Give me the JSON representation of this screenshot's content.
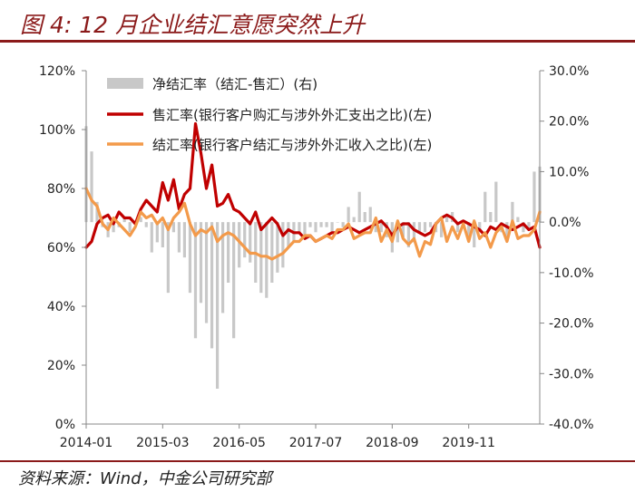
{
  "figure": {
    "title": "图 4: 12 月企业结汇意愿突然上升",
    "source": "资料来源：Wind，中金公司研究部"
  },
  "chart_data": {
    "type": "line",
    "y_left": {
      "ylim": [
        0,
        120
      ],
      "ticks": [
        "0%",
        "20%",
        "40%",
        "60%",
        "80%",
        "100%",
        "120%"
      ]
    },
    "y_right": {
      "ylim": [
        -40,
        30
      ],
      "ticks": [
        "-40.0%",
        "-30.0%",
        "-20.0%",
        "-10.0%",
        "0.0%",
        "10.0%",
        "20.0%",
        "30.0%"
      ]
    },
    "x_start": "2014-01",
    "x_tick_labels": [
      "2014-01",
      "2015-03",
      "2016-05",
      "2017-07",
      "2018-09",
      "2019-11"
    ],
    "x": [
      "2014-01",
      "2014-02",
      "2014-03",
      "2014-04",
      "2014-05",
      "2014-06",
      "2014-07",
      "2014-08",
      "2014-09",
      "2014-10",
      "2014-11",
      "2014-12",
      "2015-01",
      "2015-02",
      "2015-03",
      "2015-04",
      "2015-05",
      "2015-06",
      "2015-07",
      "2015-08",
      "2015-09",
      "2015-10",
      "2015-11",
      "2015-12",
      "2016-01",
      "2016-02",
      "2016-03",
      "2016-04",
      "2016-05",
      "2016-06",
      "2016-07",
      "2016-08",
      "2016-09",
      "2016-10",
      "2016-11",
      "2016-12",
      "2017-01",
      "2017-02",
      "2017-03",
      "2017-04",
      "2017-05",
      "2017-06",
      "2017-07",
      "2017-08",
      "2017-09",
      "2017-10",
      "2017-11",
      "2017-12",
      "2018-01",
      "2018-02",
      "2018-03",
      "2018-04",
      "2018-05",
      "2018-06",
      "2018-07",
      "2018-08",
      "2018-09",
      "2018-10",
      "2018-11",
      "2018-12",
      "2019-01",
      "2019-02",
      "2019-03",
      "2019-04",
      "2019-05",
      "2019-06",
      "2019-07",
      "2019-08",
      "2019-09",
      "2019-10",
      "2019-11",
      "2019-12",
      "2020-01",
      "2020-02",
      "2020-03",
      "2020-04",
      "2020-05",
      "2020-06",
      "2020-07",
      "2020-08",
      "2020-09",
      "2020-10",
      "2020-11",
      "2020-12"
    ],
    "legend_placement": "top",
    "grid": false,
    "series": [
      {
        "name": "净结汇率（结汇-售汇）(右)",
        "type": "bar",
        "axis": "right",
        "color": "#c8c8c8",
        "values": [
          19,
          14,
          4,
          -1,
          -3,
          -2,
          -1,
          1,
          -2,
          0,
          1,
          -1,
          -6,
          -4,
          -5,
          -14,
          -2,
          -6,
          -7,
          -14,
          -23,
          -16,
          -20,
          -25,
          -33,
          -18,
          -12,
          -23,
          -9,
          -7,
          -8,
          -12,
          -14,
          -15,
          -12,
          -10,
          -9,
          -5,
          -4,
          -2,
          -3,
          -1,
          -2,
          -1,
          -1,
          -2,
          0,
          -1,
          3,
          1,
          6,
          2,
          3,
          -2,
          -2,
          -3,
          -6,
          -4,
          -3,
          -5,
          -4,
          -2,
          -2,
          -1,
          -2,
          -3,
          1,
          2,
          -2,
          -1,
          -3,
          -5,
          -2,
          6,
          2,
          8,
          -2,
          -3,
          4,
          1,
          -2,
          -1,
          10,
          11
        ]
      },
      {
        "name": "售汇率(银行客户购汇与涉外外汇支出之比)(左)",
        "type": "line",
        "axis": "left",
        "color": "#c00000",
        "values": [
          60,
          62,
          68,
          70,
          71,
          68,
          72,
          70,
          70,
          68,
          73,
          76,
          74,
          72,
          82,
          76,
          83,
          73,
          78,
          80,
          102,
          92,
          80,
          88,
          74,
          75,
          78,
          73,
          72,
          70,
          68,
          72,
          66,
          68,
          70,
          68,
          64,
          66,
          65,
          65,
          63,
          64,
          62,
          63,
          64,
          65,
          65,
          66,
          67,
          66,
          65,
          66,
          67,
          68,
          69,
          67,
          64,
          67,
          68,
          68,
          66,
          65,
          64,
          65,
          68,
          70,
          71,
          70,
          68,
          69,
          68,
          67,
          66,
          64,
          67,
          66,
          68,
          67,
          66,
          67,
          68,
          66,
          67,
          60
        ]
      },
      {
        "name": "结汇率(银行客户结汇与涉外外汇收入之比)(左)",
        "type": "line",
        "axis": "left",
        "color": "#f39a4a",
        "values": [
          80,
          76,
          74,
          68,
          66,
          70,
          68,
          66,
          64,
          67,
          72,
          70,
          71,
          68,
          70,
          66,
          70,
          72,
          75,
          68,
          64,
          66,
          65,
          67,
          62,
          64,
          65,
          64,
          62,
          60,
          58,
          58,
          57,
          57,
          56,
          57,
          58,
          60,
          62,
          62,
          64,
          64,
          62,
          63,
          64,
          63,
          66,
          66,
          68,
          63,
          64,
          65,
          65,
          70,
          62,
          66,
          62,
          69,
          63,
          61,
          63,
          57,
          62,
          61,
          68,
          70,
          62,
          67,
          63,
          68,
          62,
          69,
          63,
          65,
          60,
          65,
          67,
          62,
          69,
          63,
          64,
          64,
          66,
          72
        ]
      }
    ]
  }
}
